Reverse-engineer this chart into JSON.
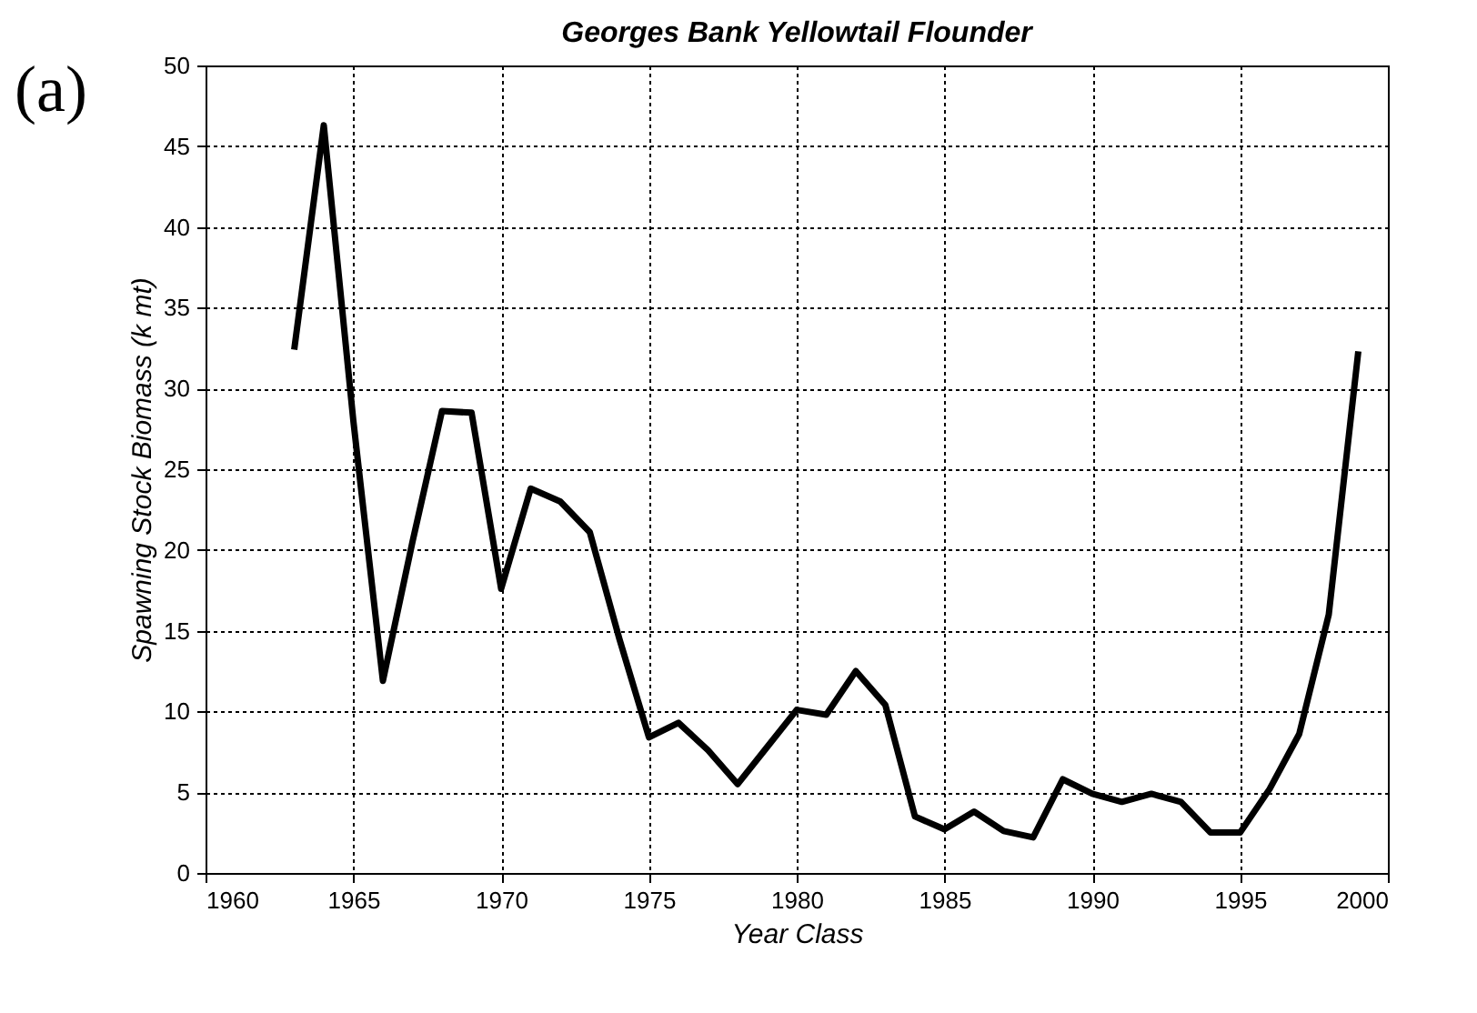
{
  "chart_data": {
    "type": "line",
    "title": "Georges Bank Yellowtail Flounder",
    "xlabel": "Year Class",
    "ylabel": "Spawning Stock Biomass (k mt)",
    "annotations": [
      "(a)"
    ],
    "x": [
      1963,
      1964,
      1965,
      1966,
      1967,
      1968,
      1969,
      1970,
      1971,
      1972,
      1973,
      1974,
      1975,
      1976,
      1977,
      1978,
      1979,
      1980,
      1981,
      1982,
      1983,
      1984,
      1985,
      1986,
      1987,
      1988,
      1989,
      1990,
      1991,
      1992,
      1993,
      1994,
      1995,
      1996,
      1997,
      1998,
      1999
    ],
    "series": [
      {
        "color": "#000000",
        "values": [
          32.4,
          46.3,
          28,
          11.9,
          20.5,
          28.6,
          28.5,
          17.6,
          23.8,
          23,
          21.1,
          14.5,
          8.4,
          9.3,
          7.6,
          5.5,
          7.8,
          10.1,
          9.8,
          12.5,
          10.4,
          3.5,
          2.7,
          3.8,
          2.6,
          2.2,
          5.8,
          4.9,
          4.4,
          4.9,
          4.4,
          2.5,
          2.5,
          5.2,
          8.6,
          16,
          32.3
        ]
      }
    ],
    "xlim": [
      1960,
      2000
    ],
    "xticks": [
      1960,
      1965,
      1970,
      1975,
      1980,
      1985,
      1990,
      1995,
      2000
    ],
    "ylim": [
      0,
      50
    ],
    "yticks": [
      0,
      5,
      10,
      15,
      20,
      25,
      30,
      35,
      40,
      45,
      50
    ],
    "grid": true,
    "line_style": "solid",
    "marker": "none"
  }
}
